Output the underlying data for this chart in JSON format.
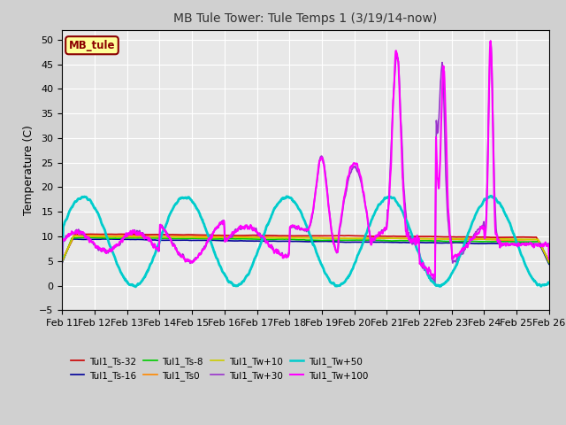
{
  "title": "MB Tule Tower: Tule Temps 1 (3/19/14-now)",
  "ylabel": "Temperature (C)",
  "ylim": [
    -5,
    52
  ],
  "yticks": [
    -5,
    0,
    5,
    10,
    15,
    20,
    25,
    30,
    35,
    40,
    45,
    50
  ],
  "xtick_labels": [
    "Feb 11",
    "Feb 12",
    "Feb 13",
    "Feb 14",
    "Feb 15",
    "Feb 16",
    "Feb 17",
    "Feb 18",
    "Feb 19",
    "Feb 20",
    "Feb 21",
    "Feb 22",
    "Feb 23",
    "Feb 24",
    "Feb 25",
    "Feb 26"
  ],
  "legend_box_color": "#ffff99",
  "legend_box_border": "#8b0000",
  "legend_box_text": "MB_tule",
  "series": [
    {
      "label": "Tul1_Ts-32",
      "color": "#cc0000",
      "lw": 1.2
    },
    {
      "label": "Tul1_Ts-16",
      "color": "#000099",
      "lw": 1.2
    },
    {
      "label": "Tul1_Ts-8",
      "color": "#00cc00",
      "lw": 1.2
    },
    {
      "label": "Tul1_Ts0",
      "color": "#ff8800",
      "lw": 1.2
    },
    {
      "label": "Tul1_Tw+10",
      "color": "#cccc00",
      "lw": 1.2
    },
    {
      "label": "Tul1_Tw+30",
      "color": "#9933cc",
      "lw": 1.2
    },
    {
      "label": "Tul1_Tw+50",
      "color": "#00cccc",
      "lw": 2.0
    },
    {
      "label": "Tul1_Tw+100",
      "color": "#ff00ff",
      "lw": 1.5
    }
  ]
}
